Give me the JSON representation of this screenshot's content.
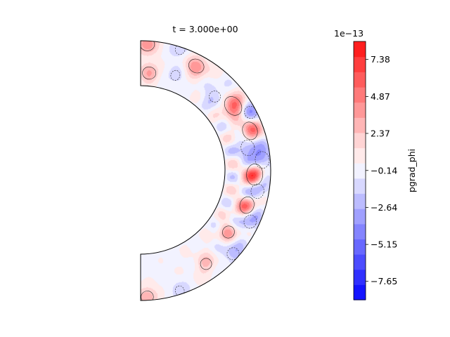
{
  "chart_data": {
    "type": "heatmap",
    "subtype": "filled-contour on half annulus (meridional slice)",
    "title": "t = 3.000e+00",
    "colorbar": {
      "label": "pgrad_phi",
      "offset_text": "1e−13",
      "tick_labels": [
        "7.38",
        "4.87",
        "2.37",
        "−0.14",
        "−2.64",
        "−5.15",
        "−7.65"
      ],
      "tick_values_e13": [
        7.38,
        4.87,
        2.37,
        -0.14,
        -2.64,
        -5.15,
        -7.65
      ],
      "range_e13": [
        -8.9,
        8.6
      ],
      "levels": 14,
      "colormap": "bwr",
      "colors": [
        "#1414ff",
        "#3030ff",
        "#4c4cff",
        "#6868ff",
        "#8484ff",
        "#a0a0ff",
        "#bcbcff",
        "#d8d8ff",
        "#f2f2ff",
        "#ffeaea",
        "#ffd4d4",
        "#ffb6b6",
        "#ff9898",
        "#ff7a7a",
        "#ff5c5c",
        "#ff3e3e",
        "#ff1e1e"
      ]
    },
    "field": {
      "background_value_e13": 0.5,
      "features": [
        {
          "r": 0.72,
          "theta_deg": 85,
          "value_e13": 3.5
        },
        {
          "r": 0.9,
          "theta_deg": 62,
          "value_e13": 4.5
        },
        {
          "r": 0.85,
          "theta_deg": 35,
          "value_e13": 6.5
        },
        {
          "r": 0.95,
          "theta_deg": 28,
          "value_e13": -3.0
        },
        {
          "r": 0.88,
          "theta_deg": 20,
          "value_e13": 5.5
        },
        {
          "r": 0.82,
          "theta_deg": 12,
          "value_e13": -4.5
        },
        {
          "r": 0.93,
          "theta_deg": 5,
          "value_e13": -5.0
        },
        {
          "r": 0.86,
          "theta_deg": -2,
          "value_e13": 7.0
        },
        {
          "r": 0.9,
          "theta_deg": -10,
          "value_e13": -4.0
        },
        {
          "r": 0.84,
          "theta_deg": -18,
          "value_e13": 5.0
        },
        {
          "r": 0.92,
          "theta_deg": -25,
          "value_e13": -3.5
        },
        {
          "r": 0.8,
          "theta_deg": -35,
          "value_e13": 3.0
        },
        {
          "r": 0.95,
          "theta_deg": -42,
          "value_e13": -3.0
        },
        {
          "r": 0.86,
          "theta_deg": -55,
          "value_e13": 2.5
        },
        {
          "r": 0.78,
          "theta_deg": 45,
          "value_e13": -2.5
        },
        {
          "r": 0.75,
          "theta_deg": 70,
          "value_e13": -1.5
        },
        {
          "r": 0.98,
          "theta_deg": 72,
          "value_e13": -1.8
        },
        {
          "r": 0.97,
          "theta_deg": -72,
          "value_e13": -1.5
        },
        {
          "r": 0.97,
          "theta_deg": 87,
          "value_e13": 4.0
        },
        {
          "r": 0.97,
          "theta_deg": -87,
          "value_e13": 3.0
        }
      ]
    }
  }
}
